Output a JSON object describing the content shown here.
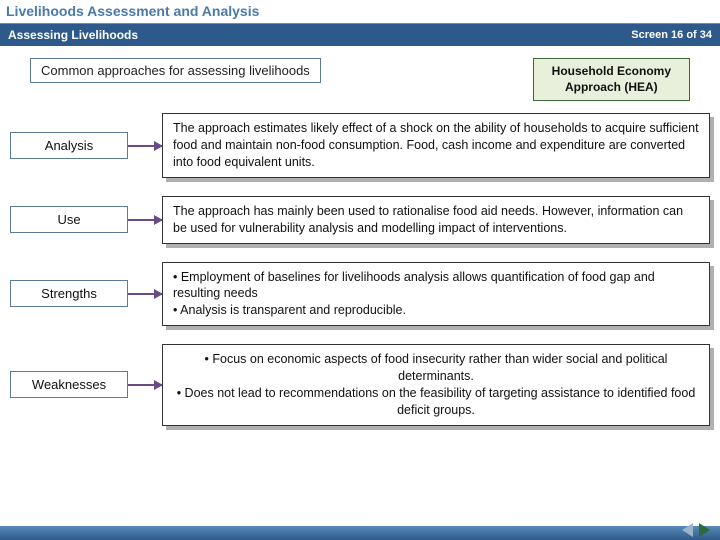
{
  "header": {
    "title": "Livelihoods Assessment and Analysis",
    "subtitle": "Assessing Livelihoods",
    "screen_label": "Screen 16 of 34"
  },
  "top": {
    "approaches_label": "Common approaches for assessing livelihoods",
    "hea_line1": "Household Economy",
    "hea_line2": "Approach (HEA)"
  },
  "rows": [
    {
      "label": "Analysis",
      "text": "The approach estimates likely effect of a shock on the ability of households to acquire sufficient food and maintain non-food consumption. Food, cash income and expenditure are converted into food equivalent units.",
      "align": "left"
    },
    {
      "label": "Use",
      "text": "The approach has mainly been used to rationalise food aid needs. However, information can be used for vulnerability analysis and modelling impact of interventions.",
      "align": "left"
    },
    {
      "label": "Strengths",
      "text": "• Employment of baselines for livelihoods analysis allows quantification of food gap and resulting needs\n• Analysis is transparent and reproducible.",
      "align": "left"
    },
    {
      "label": "Weaknesses",
      "text": "• Focus on economic aspects of food insecurity rather than wider social and political determinants.\n• Does not lead to recommendations on the feasibility of targeting assistance to identified food deficit groups.",
      "align": "center"
    }
  ],
  "colors": {
    "header_bar": "#2d5a8a",
    "title_text": "#4a7aa8",
    "label_border": "#5a7a9a",
    "hea_bg": "#e8f0dc",
    "hea_border": "#3a6a3a",
    "connector": "#6b4a8a",
    "shadow": "#b0b0b0"
  }
}
